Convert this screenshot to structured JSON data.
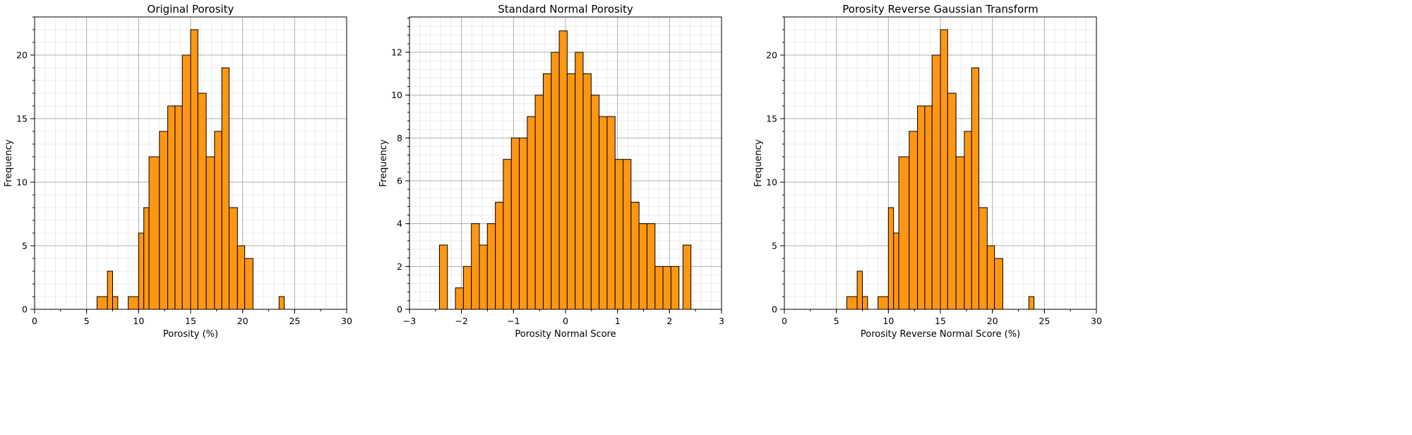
{
  "colors": {
    "bar_fill": "#ff9614",
    "bar_edge": "#000000",
    "grid_major": "#b0b0b0",
    "grid_minor": "#e6e6e6"
  },
  "chart_data": [
    {
      "type": "bar",
      "title": "Original Porosity",
      "xlabel": "Porosity (%)",
      "ylabel": "Frequency",
      "xlim": [
        0,
        30
      ],
      "ylim": [
        0,
        23
      ],
      "xticks": [
        0,
        5,
        10,
        15,
        20,
        25,
        30
      ],
      "xtick_labels": [
        "0",
        "5",
        "10",
        "15",
        "20",
        "25",
        "30"
      ],
      "yticks": [
        0,
        5,
        10,
        15,
        20
      ],
      "ytick_labels": [
        "0",
        "5",
        "10",
        "15",
        "20"
      ],
      "grid": true,
      "bins": [
        {
          "x0": 6.0,
          "x1": 7.0,
          "count": 1
        },
        {
          "x0": 7.0,
          "x1": 7.5,
          "count": 3
        },
        {
          "x0": 7.5,
          "x1": 8.0,
          "count": 1
        },
        {
          "x0": 9.0,
          "x1": 10.0,
          "count": 1
        },
        {
          "x0": 10.0,
          "x1": 10.5,
          "count": 6
        },
        {
          "x0": 10.5,
          "x1": 11.0,
          "count": 8
        },
        {
          "x0": 11.0,
          "x1": 12.0,
          "count": 12
        },
        {
          "x0": 12.0,
          "x1": 12.8,
          "count": 14
        },
        {
          "x0": 12.8,
          "x1": 13.5,
          "count": 16
        },
        {
          "x0": 13.5,
          "x1": 14.2,
          "count": 16
        },
        {
          "x0": 14.2,
          "x1": 15.0,
          "count": 20
        },
        {
          "x0": 15.0,
          "x1": 15.7,
          "count": 22
        },
        {
          "x0": 15.7,
          "x1": 16.5,
          "count": 17
        },
        {
          "x0": 16.5,
          "x1": 17.3,
          "count": 12
        },
        {
          "x0": 17.3,
          "x1": 18.0,
          "count": 14
        },
        {
          "x0": 18.0,
          "x1": 18.7,
          "count": 19
        },
        {
          "x0": 18.7,
          "x1": 19.5,
          "count": 8
        },
        {
          "x0": 19.5,
          "x1": 20.2,
          "count": 5
        },
        {
          "x0": 20.2,
          "x1": 21.0,
          "count": 4
        },
        {
          "x0": 23.5,
          "x1": 24.0,
          "count": 1
        }
      ]
    },
    {
      "type": "bar",
      "title": "Standard Normal Porosity",
      "xlabel": "Porosity Normal Score",
      "ylabel": "Frequency",
      "xlim": [
        -3,
        3
      ],
      "ylim": [
        0,
        13.65
      ],
      "xticks": [
        -3,
        -2,
        -1,
        0,
        1,
        2,
        3
      ],
      "xtick_labels": [
        "−3",
        "−2",
        "−1",
        "0",
        "1",
        "2",
        "3"
      ],
      "yticks": [
        0,
        2,
        4,
        6,
        8,
        10,
        12
      ],
      "ytick_labels": [
        "0",
        "2",
        "4",
        "6",
        "8",
        "10",
        "12"
      ],
      "grid": true,
      "bins": [
        {
          "x0": -2.424,
          "x1": -2.27,
          "count": 3
        },
        {
          "x0": -2.117,
          "x1": -1.963,
          "count": 1
        },
        {
          "x0": -1.963,
          "x1": -1.81,
          "count": 2
        },
        {
          "x0": -1.81,
          "x1": -1.656,
          "count": 4
        },
        {
          "x0": -1.656,
          "x1": -1.503,
          "count": 3
        },
        {
          "x0": -1.503,
          "x1": -1.349,
          "count": 4
        },
        {
          "x0": -1.349,
          "x1": -1.196,
          "count": 5
        },
        {
          "x0": -1.196,
          "x1": -1.042,
          "count": 7
        },
        {
          "x0": -1.042,
          "x1": -0.889,
          "count": 8
        },
        {
          "x0": -0.889,
          "x1": -0.735,
          "count": 8
        },
        {
          "x0": -0.735,
          "x1": -0.582,
          "count": 9
        },
        {
          "x0": -0.582,
          "x1": -0.428,
          "count": 10
        },
        {
          "x0": -0.428,
          "x1": -0.275,
          "count": 11
        },
        {
          "x0": -0.275,
          "x1": -0.121,
          "count": 12
        },
        {
          "x0": -0.121,
          "x1": 0.032,
          "count": 13
        },
        {
          "x0": 0.032,
          "x1": 0.186,
          "count": 11
        },
        {
          "x0": 0.186,
          "x1": 0.339,
          "count": 12
        },
        {
          "x0": 0.339,
          "x1": 0.493,
          "count": 11
        },
        {
          "x0": 0.493,
          "x1": 0.646,
          "count": 10
        },
        {
          "x0": 0.646,
          "x1": 0.8,
          "count": 9
        },
        {
          "x0": 0.8,
          "x1": 0.953,
          "count": 9
        },
        {
          "x0": 0.953,
          "x1": 1.107,
          "count": 7
        },
        {
          "x0": 1.107,
          "x1": 1.26,
          "count": 7
        },
        {
          "x0": 1.26,
          "x1": 1.414,
          "count": 5
        },
        {
          "x0": 1.414,
          "x1": 1.567,
          "count": 4
        },
        {
          "x0": 1.567,
          "x1": 1.721,
          "count": 4
        },
        {
          "x0": 1.721,
          "x1": 1.874,
          "count": 2
        },
        {
          "x0": 1.874,
          "x1": 2.028,
          "count": 2
        },
        {
          "x0": 2.028,
          "x1": 2.181,
          "count": 2
        },
        {
          "x0": 2.258,
          "x1": 2.412,
          "count": 3
        }
      ]
    },
    {
      "type": "bar",
      "title": "Porosity Reverse Gaussian Transform",
      "xlabel": "Porosity Reverse Normal Score (%)",
      "ylabel": "Frequency",
      "xlim": [
        0,
        30
      ],
      "ylim": [
        0,
        23
      ],
      "xticks": [
        0,
        5,
        10,
        15,
        20,
        25,
        30
      ],
      "xtick_labels": [
        "0",
        "5",
        "10",
        "15",
        "20",
        "25",
        "30"
      ],
      "yticks": [
        0,
        5,
        10,
        15,
        20
      ],
      "ytick_labels": [
        "0",
        "5",
        "10",
        "15",
        "20"
      ],
      "grid": true,
      "bins": [
        {
          "x0": 6.0,
          "x1": 7.0,
          "count": 1
        },
        {
          "x0": 7.0,
          "x1": 7.5,
          "count": 3
        },
        {
          "x0": 7.5,
          "x1": 8.0,
          "count": 1
        },
        {
          "x0": 9.0,
          "x1": 10.0,
          "count": 1
        },
        {
          "x0": 10.0,
          "x1": 10.5,
          "count": 8
        },
        {
          "x0": 10.5,
          "x1": 11.0,
          "count": 6
        },
        {
          "x0": 11.0,
          "x1": 12.0,
          "count": 12
        },
        {
          "x0": 12.0,
          "x1": 12.8,
          "count": 14
        },
        {
          "x0": 12.8,
          "x1": 13.5,
          "count": 16
        },
        {
          "x0": 13.5,
          "x1": 14.2,
          "count": 16
        },
        {
          "x0": 14.2,
          "x1": 15.0,
          "count": 20
        },
        {
          "x0": 15.0,
          "x1": 15.7,
          "count": 22
        },
        {
          "x0": 15.7,
          "x1": 16.5,
          "count": 17
        },
        {
          "x0": 16.5,
          "x1": 17.3,
          "count": 12
        },
        {
          "x0": 17.3,
          "x1": 18.0,
          "count": 14
        },
        {
          "x0": 18.0,
          "x1": 18.7,
          "count": 19
        },
        {
          "x0": 18.7,
          "x1": 19.5,
          "count": 8
        },
        {
          "x0": 19.5,
          "x1": 20.2,
          "count": 5
        },
        {
          "x0": 20.2,
          "x1": 21.0,
          "count": 4
        },
        {
          "x0": 23.5,
          "x1": 24.0,
          "count": 1
        }
      ]
    }
  ]
}
